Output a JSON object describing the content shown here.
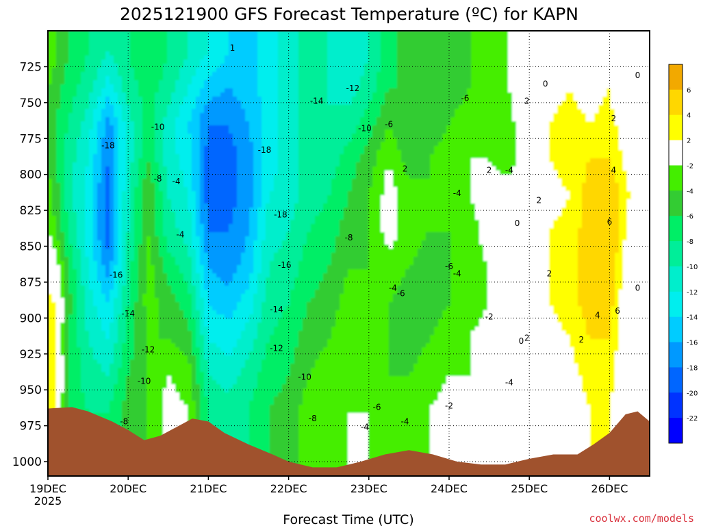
{
  "chart_data": {
    "type": "heatmap",
    "title": "2025121900 GFS Forecast Temperature (ºC) for KAPN",
    "xlabel": "Forecast Time (UTC)",
    "ylabel": "",
    "credit": "coolwx.com/models",
    "x_ticks": [
      "19DEC",
      "20DEC",
      "21DEC",
      "22DEC",
      "23DEC",
      "24DEC",
      "25DEC",
      "26DEC"
    ],
    "x_year": "2025",
    "x_range_days": [
      0,
      7.5
    ],
    "y_ticks": [
      "725",
      "750",
      "775",
      "800",
      "825",
      "850",
      "875",
      "900",
      "925",
      "950",
      "975",
      "1000"
    ],
    "y_range": [
      700,
      1010
    ],
    "grid": "dotted",
    "colorbar": {
      "labels": [
        "6",
        "4",
        "2",
        "-2",
        "-4",
        "-6",
        "-8",
        "-10",
        "-12",
        "-14",
        "-16",
        "-18",
        "-20",
        "-22"
      ],
      "colors": [
        "#f2a900",
        "#ffd700",
        "#ffff00",
        "#ffffff",
        "#44ee00",
        "#33cc33",
        "#00ee66",
        "#00ee99",
        "#00eecc",
        "#00eeee",
        "#00ccff",
        "#0099ff",
        "#0066ff",
        "#0033ff",
        "#0000ff"
      ]
    },
    "columns": [
      {
        "t": 0.0,
        "levels": [
          -2,
          -4,
          -4,
          -4,
          -3,
          -2,
          1,
          3,
          4,
          3,
          4,
          4
        ]
      },
      {
        "t": 0.1,
        "levels": [
          -4,
          -5,
          -6,
          -6,
          -5,
          -4,
          -1,
          2,
          2,
          3,
          3,
          3
        ]
      },
      {
        "t": 0.25,
        "levels": [
          -6,
          -7,
          -8,
          -9,
          -9,
          -8,
          -6,
          -5,
          -6,
          -6,
          -7,
          -7
        ]
      },
      {
        "t": 0.5,
        "levels": [
          -8,
          -9,
          -11,
          -12,
          -13,
          -13,
          -12,
          -11,
          -10,
          -9,
          -8,
          -8
        ]
      },
      {
        "t": 0.75,
        "levels": [
          -10,
          -13,
          -17,
          -18,
          -19,
          -19,
          -17,
          -14,
          -12,
          -10,
          -8,
          -8
        ]
      },
      {
        "t": 1.0,
        "levels": [
          -8,
          -9,
          -11,
          -11,
          -10,
          -10,
          -9,
          -8,
          -7,
          -6,
          -5,
          -5
        ]
      },
      {
        "t": 1.25,
        "levels": [
          -6,
          -7,
          -7,
          -6,
          -4,
          -4,
          -3,
          -3,
          -4,
          -4,
          -4,
          -4
        ]
      },
      {
        "t": 1.5,
        "levels": [
          -8,
          -9,
          -11,
          -11,
          -10,
          -9,
          -7,
          -5,
          -4,
          -2,
          -1,
          -1
        ]
      },
      {
        "t": 1.75,
        "levels": [
          -10,
          -12,
          -14,
          -13,
          -12,
          -11,
          -9,
          -7,
          -5,
          -3,
          -2,
          -2
        ]
      },
      {
        "t": 2.0,
        "levels": [
          -12,
          -15,
          -18,
          -19,
          -19,
          -18,
          -16,
          -14,
          -12,
          -10,
          -8,
          -8
        ]
      },
      {
        "t": 2.25,
        "levels": [
          -14,
          -16,
          -18,
          -19,
          -19,
          -18,
          -17,
          -15,
          -13,
          -11,
          -9,
          -9
        ]
      },
      {
        "t": 2.5,
        "levels": [
          -15,
          -15,
          -16,
          -17,
          -17,
          -16,
          -15,
          -13,
          -11,
          -9,
          -8,
          -8
        ]
      },
      {
        "t": 2.75,
        "levels": [
          -13,
          -13,
          -13,
          -13,
          -12,
          -11,
          -10,
          -9,
          -8,
          -7,
          -6,
          -6
        ]
      },
      {
        "t": 3.0,
        "levels": [
          -11,
          -11,
          -11,
          -11,
          -11,
          -10,
          -9,
          -8,
          -7,
          -6,
          -5,
          -5
        ]
      },
      {
        "t": 3.25,
        "levels": [
          -9,
          -9,
          -9,
          -9,
          -9,
          -8,
          -7,
          -6,
          -5,
          -4,
          -3,
          -3
        ]
      },
      {
        "t": 3.5,
        "levels": [
          -10,
          -10,
          -10,
          -9,
          -8,
          -7,
          -6,
          -5,
          -4,
          -3,
          -3,
          -3
        ]
      },
      {
        "t": 3.75,
        "levels": [
          -12,
          -11,
          -9,
          -7,
          -6,
          -5,
          -4,
          -3,
          -3,
          -3,
          -2,
          -2
        ]
      },
      {
        "t": 4.0,
        "levels": [
          -10,
          -9,
          -7,
          -5,
          -4,
          -4,
          -4,
          -3,
          -3,
          -3,
          -2,
          -2
        ]
      },
      {
        "t": 4.25,
        "levels": [
          -7,
          -6,
          -4,
          -2,
          -1,
          -1,
          -3,
          -4,
          -4,
          -4,
          -3,
          -3
        ]
      },
      {
        "t": 4.5,
        "levels": [
          -5,
          -6,
          -6,
          -5,
          -3,
          -3,
          -4,
          -5,
          -5,
          -4,
          -3,
          -3
        ]
      },
      {
        "t": 4.75,
        "levels": [
          -6,
          -6,
          -5,
          -4,
          -4,
          -4,
          -5,
          -5,
          -4,
          -3,
          -2,
          -2
        ]
      },
      {
        "t": 5.0,
        "levels": [
          -5,
          -5,
          -4,
          -3,
          -3,
          -4,
          -4,
          -4,
          -3,
          -2,
          -1,
          -1
        ]
      },
      {
        "t": 5.25,
        "levels": [
          -4,
          -4,
          -3,
          -2,
          -2,
          -3,
          -3,
          -3,
          -2,
          -2,
          -1,
          -1
        ]
      },
      {
        "t": 5.5,
        "levels": [
          -3,
          -3,
          -3,
          -2,
          -1,
          -1,
          -2,
          -2,
          -1,
          -1,
          0,
          0
        ]
      },
      {
        "t": 5.75,
        "levels": [
          -2,
          -2,
          -3,
          -3,
          -1,
          0,
          0,
          0,
          0,
          0,
          0,
          0
        ]
      },
      {
        "t": 6.0,
        "levels": [
          1,
          1,
          1,
          0,
          0,
          0,
          0,
          0,
          0,
          0,
          0,
          0
        ]
      },
      {
        "t": 6.25,
        "levels": [
          0,
          1,
          2,
          2,
          1,
          2,
          2,
          2,
          1,
          0,
          0,
          0
        ]
      },
      {
        "t": 6.5,
        "levels": [
          0,
          2,
          3,
          3,
          2,
          3,
          3,
          3,
          2,
          1,
          0,
          0
        ]
      },
      {
        "t": 6.75,
        "levels": [
          1,
          1,
          2,
          4,
          5,
          5,
          5,
          5,
          4,
          3,
          2,
          2
        ]
      },
      {
        "t": 7.0,
        "levels": [
          1,
          2,
          3,
          4,
          6,
          6,
          6,
          5,
          4,
          3,
          2,
          2
        ]
      },
      {
        "t": 7.25,
        "levels": [
          -2,
          -2,
          0,
          1,
          2,
          1,
          0,
          -1,
          -1,
          -1,
          -1,
          -1
        ]
      },
      {
        "t": 7.5,
        "levels": [
          -1,
          -1,
          0,
          0,
          0,
          0,
          0,
          0,
          0,
          0,
          0,
          0
        ]
      }
    ],
    "column_levels_hpa": [
      715,
      740,
      765,
      790,
      815,
      840,
      865,
      890,
      915,
      940,
      965,
      990
    ],
    "surface_pressure": [
      {
        "t": 0.0,
        "p": 963
      },
      {
        "t": 0.3,
        "p": 962
      },
      {
        "t": 0.5,
        "p": 965
      },
      {
        "t": 0.8,
        "p": 972
      },
      {
        "t": 1.0,
        "p": 978
      },
      {
        "t": 1.2,
        "p": 985
      },
      {
        "t": 1.4,
        "p": 982
      },
      {
        "t": 1.6,
        "p": 976
      },
      {
        "t": 1.8,
        "p": 970
      },
      {
        "t": 2.0,
        "p": 972
      },
      {
        "t": 2.2,
        "p": 980
      },
      {
        "t": 2.5,
        "p": 988
      },
      {
        "t": 2.8,
        "p": 995
      },
      {
        "t": 3.0,
        "p": 1000
      },
      {
        "t": 3.3,
        "p": 1004
      },
      {
        "t": 3.6,
        "p": 1004
      },
      {
        "t": 3.9,
        "p": 1000
      },
      {
        "t": 4.2,
        "p": 995
      },
      {
        "t": 4.5,
        "p": 992
      },
      {
        "t": 4.8,
        "p": 995
      },
      {
        "t": 5.1,
        "p": 1000
      },
      {
        "t": 5.4,
        "p": 1002
      },
      {
        "t": 5.7,
        "p": 1002
      },
      {
        "t": 6.0,
        "p": 998
      },
      {
        "t": 6.3,
        "p": 995
      },
      {
        "t": 6.6,
        "p": 995
      },
      {
        "t": 6.8,
        "p": 988
      },
      {
        "t": 7.0,
        "p": 980
      },
      {
        "t": 7.2,
        "p": 967
      },
      {
        "t": 7.35,
        "p": 965
      },
      {
        "t": 7.5,
        "p": 972
      }
    ],
    "contour_labels": [
      {
        "t": 0.75,
        "p": 780,
        "text": "-18"
      },
      {
        "t": 0.85,
        "p": 870,
        "text": "-16"
      },
      {
        "t": 1.0,
        "p": 897,
        "text": "-14"
      },
      {
        "t": 1.25,
        "p": 922,
        "text": "-12"
      },
      {
        "t": 1.2,
        "p": 944,
        "text": "-10"
      },
      {
        "t": 0.95,
        "p": 972,
        "text": "-8"
      },
      {
        "t": 1.37,
        "p": 767,
        "text": "-10"
      },
      {
        "t": 1.37,
        "p": 803,
        "text": "-8"
      },
      {
        "t": 1.6,
        "p": 805,
        "text": "-4"
      },
      {
        "t": 1.65,
        "p": 842,
        "text": "-4"
      },
      {
        "t": 1.65,
        "p": 977,
        "text": "-4"
      },
      {
        "t": 2.3,
        "p": 712,
        "text": "1"
      },
      {
        "t": 2.7,
        "p": 783,
        "text": "-18"
      },
      {
        "t": 2.9,
        "p": 828,
        "text": "-18"
      },
      {
        "t": 2.95,
        "p": 863,
        "text": "-16"
      },
      {
        "t": 2.85,
        "p": 894,
        "text": "-14"
      },
      {
        "t": 2.85,
        "p": 921,
        "text": "-12"
      },
      {
        "t": 3.2,
        "p": 941,
        "text": "-10"
      },
      {
        "t": 3.3,
        "p": 970,
        "text": "-8"
      },
      {
        "t": 3.35,
        "p": 749,
        "text": "-14"
      },
      {
        "t": 3.8,
        "p": 740,
        "text": "-12"
      },
      {
        "t": 3.95,
        "p": 768,
        "text": "-10"
      },
      {
        "t": 4.25,
        "p": 765,
        "text": "-6"
      },
      {
        "t": 3.75,
        "p": 844,
        "text": "-8"
      },
      {
        "t": 4.3,
        "p": 879,
        "text": "-4"
      },
      {
        "t": 4.4,
        "p": 883,
        "text": "-6"
      },
      {
        "t": 4.45,
        "p": 796,
        "text": "2"
      },
      {
        "t": 4.1,
        "p": 962,
        "text": "-6"
      },
      {
        "t": 3.95,
        "p": 976,
        "text": "-4"
      },
      {
        "t": 4.45,
        "p": 972,
        "text": "-4"
      },
      {
        "t": 5.0,
        "p": 961,
        "text": "-2"
      },
      {
        "t": 5.1,
        "p": 813,
        "text": "-4"
      },
      {
        "t": 5.0,
        "p": 864,
        "text": "-6"
      },
      {
        "t": 5.1,
        "p": 869,
        "text": "-4"
      },
      {
        "t": 5.2,
        "p": 747,
        "text": "-6"
      },
      {
        "t": 5.5,
        "p": 797,
        "text": "2"
      },
      {
        "t": 5.75,
        "p": 797,
        "text": "-4"
      },
      {
        "t": 5.5,
        "p": 899,
        "text": "-2"
      },
      {
        "t": 5.75,
        "p": 945,
        "text": "-4"
      },
      {
        "t": 5.97,
        "p": 749,
        "text": "2"
      },
      {
        "t": 6.2,
        "p": 737,
        "text": "0"
      },
      {
        "t": 5.85,
        "p": 834,
        "text": "0"
      },
      {
        "t": 6.12,
        "p": 818,
        "text": "2"
      },
      {
        "t": 5.9,
        "p": 916,
        "text": "0"
      },
      {
        "t": 5.97,
        "p": 914,
        "text": "2"
      },
      {
        "t": 6.25,
        "p": 869,
        "text": "2"
      },
      {
        "t": 6.65,
        "p": 915,
        "text": "2"
      },
      {
        "t": 6.85,
        "p": 898,
        "text": "4"
      },
      {
        "t": 7.05,
        "p": 761,
        "text": "2"
      },
      {
        "t": 7.05,
        "p": 797,
        "text": "4"
      },
      {
        "t": 7.0,
        "p": 833,
        "text": "6"
      },
      {
        "t": 7.1,
        "p": 895,
        "text": "6"
      },
      {
        "t": 7.35,
        "p": 731,
        "text": "0"
      },
      {
        "t": 7.35,
        "p": 879,
        "text": "0"
      }
    ]
  }
}
